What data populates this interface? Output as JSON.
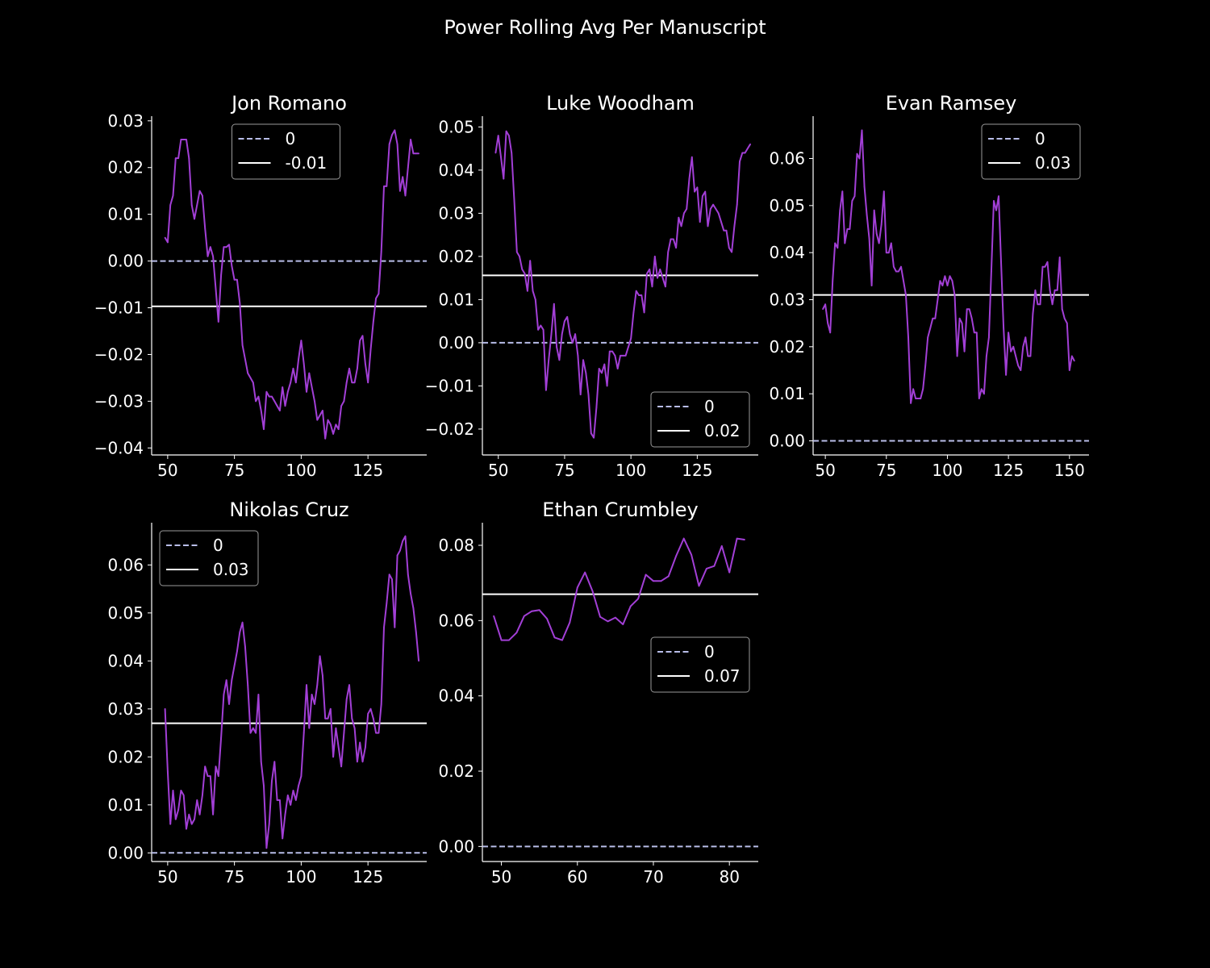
{
  "figure_title": "Power Rolling Avg Per Manuscript",
  "colors": {
    "background": "#000000",
    "series": "#a23fd6",
    "zero_line": "#b8bde8",
    "mean_line": "#ffffff",
    "text": "#ffffff",
    "legend_border": "#9a9a9a"
  },
  "chart_data": [
    {
      "type": "line",
      "title": "Jon Romano",
      "xlim": [
        44,
        147
      ],
      "ylim": [
        -0.0415,
        0.031
      ],
      "xticks": [
        50,
        75,
        100,
        125
      ],
      "yticks": [
        -0.04,
        -0.03,
        -0.02,
        -0.01,
        0.0,
        0.01,
        0.02,
        0.03
      ],
      "ytick_labels": [
        "−0.04",
        "−0.03",
        "−0.02",
        "−0.01",
        "0.00",
        "0.01",
        "0.02",
        "0.03"
      ],
      "legend_position": "upper-center",
      "legend": [
        "0",
        "-0.01"
      ],
      "zero_line": 0,
      "mean_line": -0.0097,
      "series": [
        {
          "x": [
            49,
            50,
            51,
            52,
            53,
            54,
            55,
            56,
            57,
            58,
            59,
            60,
            61,
            62,
            63,
            64,
            65,
            66,
            67,
            68,
            69,
            70,
            71,
            72,
            73,
            74,
            75,
            76,
            77,
            78,
            79,
            80,
            81,
            82,
            83,
            84,
            85,
            86,
            87,
            88,
            89,
            90,
            91,
            92,
            93,
            94,
            95,
            96,
            97,
            98,
            99,
            100,
            101,
            102,
            103,
            104,
            105,
            106,
            107,
            108,
            109,
            110,
            111,
            112,
            113,
            114,
            115,
            116,
            117,
            118,
            119,
            120,
            121,
            122,
            123,
            124,
            125,
            126,
            127,
            128,
            129,
            130,
            131,
            132,
            133,
            134,
            135,
            136,
            137,
            138,
            139,
            140,
            141,
            142,
            143,
            144
          ],
          "y": [
            0.005,
            0.004,
            0.012,
            0.014,
            0.022,
            0.022,
            0.026,
            0.026,
            0.026,
            0.022,
            0.012,
            0.009,
            0.012,
            0.015,
            0.014,
            0.007,
            0.001,
            0.003,
            0.001,
            -0.006,
            -0.013,
            -0.003,
            0.003,
            0.003,
            0.0035,
            -0.001,
            -0.004,
            -0.004,
            -0.009,
            -0.018,
            -0.021,
            -0.024,
            -0.025,
            -0.026,
            -0.03,
            -0.029,
            -0.032,
            -0.036,
            -0.028,
            -0.029,
            -0.029,
            -0.03,
            -0.031,
            -0.032,
            -0.027,
            -0.031,
            -0.028,
            -0.026,
            -0.023,
            -0.026,
            -0.021,
            -0.017,
            -0.022,
            -0.028,
            -0.024,
            -0.027,
            -0.03,
            -0.034,
            -0.033,
            -0.032,
            -0.038,
            -0.034,
            -0.035,
            -0.037,
            -0.035,
            -0.036,
            -0.031,
            -0.03,
            -0.026,
            -0.023,
            -0.026,
            -0.026,
            -0.023,
            -0.017,
            -0.016,
            -0.022,
            -0.026,
            -0.019,
            -0.013,
            -0.008,
            -0.007,
            0.002,
            0.016,
            0.016,
            0.025,
            0.027,
            0.028,
            0.025,
            0.015,
            0.018,
            0.014,
            0.02,
            0.026,
            0.023,
            0.023,
            0.023
          ]
        }
      ]
    },
    {
      "type": "line",
      "title": "Luke Woodham",
      "xlim": [
        44,
        148
      ],
      "ylim": [
        -0.026,
        0.0525
      ],
      "xticks": [
        50,
        75,
        100,
        125
      ],
      "yticks": [
        -0.02,
        -0.01,
        0.0,
        0.01,
        0.02,
        0.03,
        0.04,
        0.05
      ],
      "ytick_labels": [
        "−0.02",
        "−0.01",
        "0.00",
        "0.01",
        "0.02",
        "0.03",
        "0.04",
        "0.05"
      ],
      "legend_position": "lower-right",
      "legend": [
        "0",
        "0.02"
      ],
      "zero_line": 0,
      "mean_line": 0.0156,
      "series": [
        {
          "x": [
            49,
            50,
            51,
            52,
            53,
            54,
            55,
            56,
            57,
            58,
            59,
            60,
            61,
            62,
            63,
            64,
            65,
            66,
            67,
            68,
            69,
            70,
            71,
            72,
            73,
            74,
            75,
            76,
            77,
            78,
            79,
            80,
            81,
            82,
            83,
            84,
            85,
            86,
            87,
            88,
            89,
            90,
            91,
            92,
            93,
            94,
            95,
            96,
            97,
            98,
            99,
            100,
            101,
            102,
            103,
            104,
            105,
            106,
            107,
            108,
            109,
            110,
            111,
            112,
            113,
            114,
            115,
            116,
            117,
            118,
            119,
            120,
            121,
            122,
            123,
            124,
            125,
            126,
            127,
            128,
            129,
            130,
            131,
            132,
            133,
            134,
            135,
            136,
            137,
            138,
            139,
            140,
            141,
            142,
            143,
            144,
            145
          ],
          "y": [
            0.044,
            0.048,
            0.043,
            0.038,
            0.049,
            0.048,
            0.044,
            0.033,
            0.021,
            0.02,
            0.017,
            0.016,
            0.012,
            0.019,
            0.012,
            0.01,
            0.003,
            0.004,
            0.003,
            -0.011,
            -0.004,
            0.002,
            0.009,
            -0.001,
            -0.004,
            0.002,
            0.005,
            0.006,
            0.002,
            0.0,
            0.002,
            -0.003,
            -0.012,
            -0.004,
            -0.007,
            -0.012,
            -0.021,
            -0.022,
            -0.015,
            -0.006,
            -0.007,
            -0.005,
            -0.01,
            -0.002,
            -0.002,
            -0.003,
            -0.006,
            -0.003,
            -0.003,
            -0.003,
            -0.001,
            0.001,
            0.007,
            0.012,
            0.011,
            0.011,
            0.007,
            0.016,
            0.017,
            0.013,
            0.02,
            0.015,
            0.017,
            0.015,
            0.013,
            0.021,
            0.024,
            0.024,
            0.022,
            0.029,
            0.027,
            0.03,
            0.031,
            0.038,
            0.043,
            0.035,
            0.036,
            0.028,
            0.034,
            0.035,
            0.027,
            0.031,
            0.032,
            0.031,
            0.03,
            0.028,
            0.026,
            0.026,
            0.022,
            0.021,
            0.027,
            0.032,
            0.042,
            0.044,
            0.044,
            0.045,
            0.046
          ]
        }
      ]
    },
    {
      "type": "line",
      "title": "Evan Ramsey",
      "xlim": [
        45,
        158
      ],
      "ylim": [
        -0.003,
        0.069
      ],
      "xticks": [
        50,
        75,
        100,
        125,
        150
      ],
      "yticks": [
        0.0,
        0.01,
        0.02,
        0.03,
        0.04,
        0.05,
        0.06
      ],
      "ytick_labels": [
        "0.00",
        "0.01",
        "0.02",
        "0.03",
        "0.04",
        "0.05",
        "0.06"
      ],
      "legend_position": "upper-right",
      "legend": [
        "0",
        "0.03"
      ],
      "zero_line": 0,
      "mean_line": 0.031,
      "series": [
        {
          "x": [
            49,
            50,
            51,
            52,
            53,
            54,
            55,
            56,
            57,
            58,
            59,
            60,
            61,
            62,
            63,
            64,
            65,
            66,
            67,
            68,
            69,
            70,
            71,
            72,
            73,
            74,
            75,
            76,
            77,
            78,
            79,
            80,
            81,
            82,
            83,
            84,
            85,
            86,
            87,
            88,
            89,
            90,
            91,
            92,
            93,
            94,
            95,
            96,
            97,
            98,
            99,
            100,
            101,
            102,
            103,
            104,
            105,
            106,
            107,
            108,
            109,
            110,
            111,
            112,
            113,
            114,
            115,
            116,
            117,
            118,
            119,
            120,
            121,
            122,
            123,
            124,
            125,
            126,
            127,
            128,
            129,
            130,
            131,
            132,
            133,
            134,
            135,
            136,
            137,
            138,
            139,
            140,
            141,
            142,
            143,
            144,
            145,
            146,
            147,
            148,
            149,
            150,
            151,
            152
          ],
          "y": [
            0.028,
            0.029,
            0.025,
            0.023,
            0.034,
            0.042,
            0.041,
            0.049,
            0.053,
            0.042,
            0.045,
            0.045,
            0.051,
            0.052,
            0.061,
            0.06,
            0.066,
            0.054,
            0.048,
            0.043,
            0.033,
            0.049,
            0.044,
            0.042,
            0.046,
            0.053,
            0.04,
            0.04,
            0.042,
            0.037,
            0.036,
            0.036,
            0.037,
            0.034,
            0.031,
            0.022,
            0.008,
            0.011,
            0.009,
            0.009,
            0.009,
            0.011,
            0.016,
            0.022,
            0.024,
            0.026,
            0.026,
            0.03,
            0.034,
            0.033,
            0.035,
            0.033,
            0.035,
            0.034,
            0.031,
            0.018,
            0.026,
            0.025,
            0.019,
            0.028,
            0.028,
            0.026,
            0.023,
            0.023,
            0.009,
            0.011,
            0.01,
            0.018,
            0.022,
            0.036,
            0.051,
            0.049,
            0.052,
            0.038,
            0.024,
            0.014,
            0.023,
            0.019,
            0.02,
            0.018,
            0.016,
            0.015,
            0.02,
            0.022,
            0.018,
            0.018,
            0.027,
            0.032,
            0.029,
            0.029,
            0.037,
            0.037,
            0.038,
            0.032,
            0.029,
            0.032,
            0.032,
            0.039,
            0.028,
            0.026,
            0.025,
            0.015,
            0.018,
            0.017
          ]
        }
      ]
    },
    {
      "type": "line",
      "title": "Nikolas Cruz",
      "xlim": [
        44,
        147
      ],
      "ylim": [
        -0.0018,
        0.0688
      ],
      "xticks": [
        50,
        75,
        100,
        125
      ],
      "yticks": [
        0.0,
        0.01,
        0.02,
        0.03,
        0.04,
        0.05,
        0.06
      ],
      "ytick_labels": [
        "0.00",
        "0.01",
        "0.02",
        "0.03",
        "0.04",
        "0.05",
        "0.06"
      ],
      "legend_position": "upper-left",
      "legend": [
        "0",
        "0.03"
      ],
      "zero_line": 0,
      "mean_line": 0.027,
      "series": [
        {
          "x": [
            49,
            50,
            51,
            52,
            53,
            54,
            55,
            56,
            57,
            58,
            59,
            60,
            61,
            62,
            63,
            64,
            65,
            66,
            67,
            68,
            69,
            70,
            71,
            72,
            73,
            74,
            75,
            76,
            77,
            78,
            79,
            80,
            81,
            82,
            83,
            84,
            85,
            86,
            87,
            88,
            89,
            90,
            91,
            92,
            93,
            94,
            95,
            96,
            97,
            98,
            99,
            100,
            101,
            102,
            103,
            104,
            105,
            106,
            107,
            108,
            109,
            110,
            111,
            112,
            113,
            114,
            115,
            116,
            117,
            118,
            119,
            120,
            121,
            122,
            123,
            124,
            125,
            126,
            127,
            128,
            129,
            130,
            131,
            132,
            133,
            134,
            135,
            136,
            137,
            138,
            139,
            140,
            141,
            142,
            143,
            144
          ],
          "y": [
            0.03,
            0.017,
            0.006,
            0.013,
            0.007,
            0.009,
            0.013,
            0.012,
            0.005,
            0.008,
            0.006,
            0.007,
            0.011,
            0.008,
            0.012,
            0.018,
            0.016,
            0.016,
            0.008,
            0.018,
            0.016,
            0.024,
            0.033,
            0.036,
            0.031,
            0.036,
            0.039,
            0.042,
            0.046,
            0.048,
            0.043,
            0.035,
            0.025,
            0.026,
            0.025,
            0.033,
            0.019,
            0.014,
            0.001,
            0.006,
            0.015,
            0.019,
            0.011,
            0.011,
            0.003,
            0.008,
            0.012,
            0.01,
            0.013,
            0.011,
            0.014,
            0.016,
            0.025,
            0.035,
            0.026,
            0.033,
            0.031,
            0.035,
            0.041,
            0.037,
            0.028,
            0.028,
            0.03,
            0.02,
            0.026,
            0.022,
            0.018,
            0.025,
            0.032,
            0.035,
            0.028,
            0.026,
            0.019,
            0.023,
            0.019,
            0.022,
            0.029,
            0.03,
            0.028,
            0.025,
            0.025,
            0.031,
            0.047,
            0.052,
            0.058,
            0.057,
            0.047,
            0.062,
            0.063,
            0.065,
            0.066,
            0.058,
            0.054,
            0.051,
            0.046,
            0.04
          ]
        }
      ]
    },
    {
      "type": "line",
      "title": "Ethan Crumbley",
      "xlim": [
        47.5,
        83.8
      ],
      "ylim": [
        -0.004,
        0.086
      ],
      "xticks": [
        50,
        60,
        70,
        80
      ],
      "yticks": [
        0.0,
        0.02,
        0.04,
        0.06,
        0.08
      ],
      "ytick_labels": [
        "0.00",
        "0.02",
        "0.04",
        "0.06",
        "0.08"
      ],
      "legend_position": "center-right",
      "legend": [
        "0",
        "0.07"
      ],
      "zero_line": 0,
      "mean_line": 0.067,
      "series": [
        {
          "x": [
            49,
            50,
            51,
            52,
            53,
            54,
            55,
            56,
            57,
            58,
            59,
            60,
            61,
            62,
            63,
            64,
            65,
            66,
            67,
            68,
            69,
            70,
            71,
            72,
            73,
            74,
            75,
            76,
            77,
            78,
            79,
            80,
            81,
            82
          ],
          "y": [
            0.0612,
            0.0548,
            0.0548,
            0.0568,
            0.0612,
            0.0625,
            0.0628,
            0.0605,
            0.0555,
            0.0548,
            0.0595,
            0.0688,
            0.0728,
            0.0678,
            0.061,
            0.0598,
            0.0608,
            0.059,
            0.0638,
            0.0658,
            0.0722,
            0.0705,
            0.0705,
            0.0718,
            0.0772,
            0.0818,
            0.0775,
            0.0692,
            0.0738,
            0.0745,
            0.0798,
            0.0728,
            0.0818,
            0.0815
          ]
        }
      ]
    }
  ]
}
